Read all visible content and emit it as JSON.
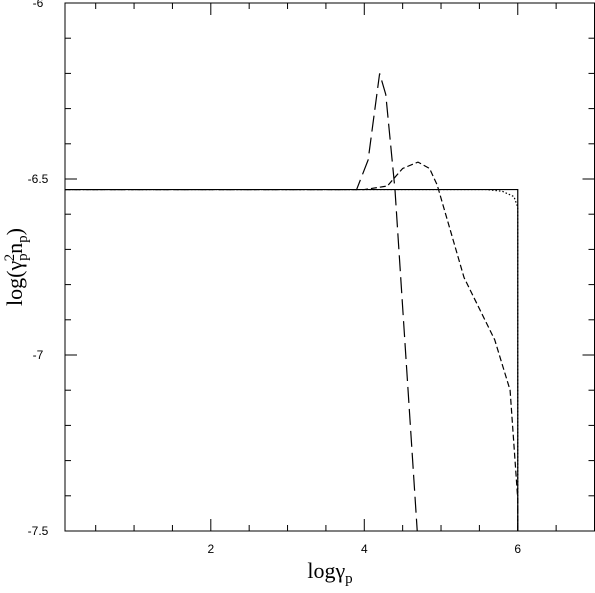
{
  "chart_data": {
    "type": "line",
    "xlabel": {
      "main": "logγ",
      "sub": "p"
    },
    "ylabel": {
      "parts": [
        {
          "t": "log(γ",
          "s": "n"
        },
        {
          "t": "p",
          "s": "sub"
        },
        {
          "t": "2",
          "s": "sup"
        },
        {
          "t": "n",
          "s": "n"
        },
        {
          "t": "p",
          "s": "sub"
        },
        {
          "t": ")",
          "s": "n"
        }
      ]
    },
    "xlim": [
      0.1,
      7
    ],
    "ylim": [
      -7.5,
      -6
    ],
    "xticks": [
      2,
      4,
      6
    ],
    "yticks": [
      -6,
      -6.5,
      -7,
      -7.5
    ],
    "xticks_minor": [
      0.5,
      1,
      1.5,
      2.5,
      3,
      3.5,
      4.5,
      5,
      5.5,
      6.5
    ],
    "yticks_minor": [
      -7.4,
      -7.3,
      -7.2,
      -7.1,
      -6.9,
      -6.8,
      -6.7,
      -6.6,
      -6.4,
      -6.3,
      -6.2,
      -6.1
    ],
    "series": [
      {
        "color": "#000000",
        "dash": "solid",
        "x": [
          0.1,
          6.0,
          6.0
        ],
        "values": [
          -6.53,
          -6.53,
          -7.5
        ]
      },
      {
        "color": "#000000",
        "dash": "dotted",
        "x": [
          0.1,
          5.6,
          5.8,
          5.95,
          6.0,
          6.0
        ],
        "values": [
          -6.53,
          -6.53,
          -6.535,
          -6.55,
          -6.58,
          -7.5
        ]
      },
      {
        "color": "#000000",
        "dash": "short",
        "x": [
          0.1,
          4.0,
          4.3,
          4.5,
          4.7,
          4.85,
          4.95,
          5.3,
          5.7,
          5.9,
          6.0,
          6.0
        ],
        "values": [
          -6.53,
          -6.53,
          -6.52,
          -6.47,
          -6.452,
          -6.47,
          -6.517,
          -6.78,
          -6.957,
          -7.1,
          -7.41,
          -7.5
        ]
      },
      {
        "color": "#000000",
        "dash": "long",
        "x": [
          0.1,
          3.9,
          4.05,
          4.2,
          4.28,
          4.4,
          4.69
        ],
        "values": [
          -6.53,
          -6.53,
          -6.446,
          -6.2,
          -6.26,
          -6.53,
          -7.5
        ]
      }
    ]
  }
}
